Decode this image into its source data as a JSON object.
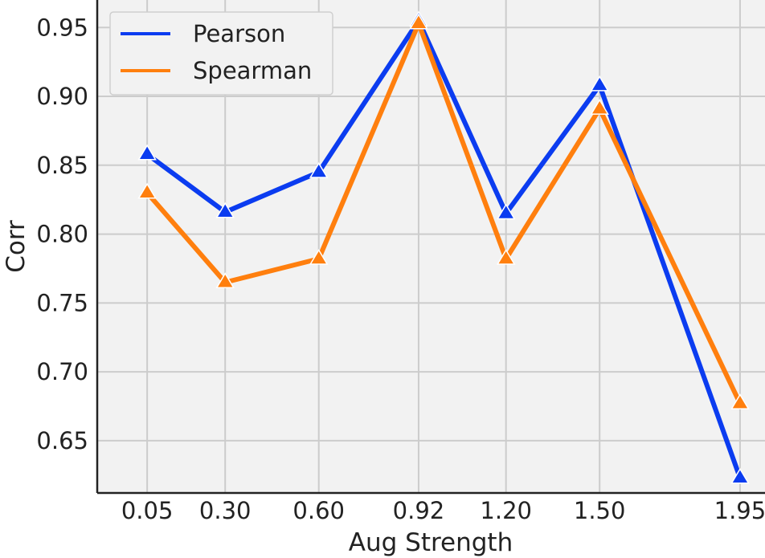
{
  "chart_data": {
    "type": "line",
    "xlabel": "Aug Strength",
    "ylabel": "Corr",
    "x": [
      0.05,
      0.3,
      0.6,
      0.92,
      1.2,
      1.5,
      1.95
    ],
    "x_tick_labels": [
      "0.05",
      "0.30",
      "0.60",
      "0.92",
      "1.20",
      "1.50",
      "1.95"
    ],
    "y_ticks": [
      0.65,
      0.7,
      0.75,
      0.8,
      0.85,
      0.9,
      0.95
    ],
    "y_tick_labels": [
      "0.65",
      "0.70",
      "0.75",
      "0.80",
      "0.85",
      "0.90",
      "0.95"
    ],
    "ylim": [
      0.612,
      0.97
    ],
    "xlim": [
      -0.11,
      2.03
    ],
    "grid": true,
    "legend_position": "top-left",
    "series": [
      {
        "name": "Pearson",
        "color": "#0b3cf0",
        "marker": "triangle-up",
        "values": [
          0.858,
          0.816,
          0.845,
          0.955,
          0.815,
          0.908,
          0.623
        ]
      },
      {
        "name": "Spearman",
        "color": "#ff7f0e",
        "marker": "triangle-up",
        "values": [
          0.83,
          0.765,
          0.782,
          0.953,
          0.782,
          0.891,
          0.677
        ]
      }
    ]
  }
}
